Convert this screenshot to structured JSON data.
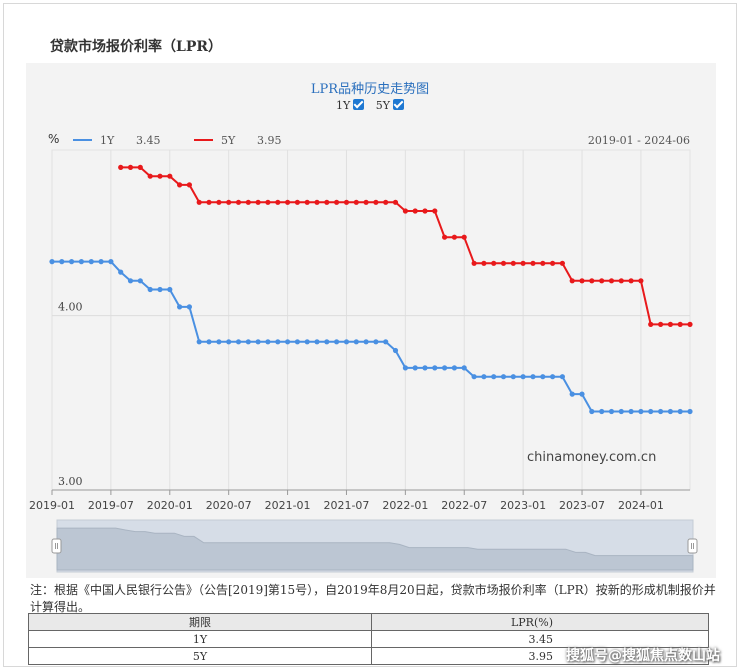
{
  "page": {
    "title": "贷款市场报价利率（LPR）"
  },
  "chart": {
    "heading": "LPR品种历史走势图",
    "toggles": [
      {
        "label": "1Y",
        "checked": true
      },
      {
        "label": "5Y",
        "checked": true
      }
    ],
    "unit_label": "%",
    "legend": [
      {
        "name": "1Y",
        "value": "3.45",
        "color": "#4a90e2"
      },
      {
        "name": "5Y",
        "value": "3.95",
        "color": "#e8191b"
      }
    ],
    "date_range": "2019-01 - 2024-06",
    "watermark": "chinamoney.com.cn"
  },
  "chart_data": {
    "type": "line",
    "x_ticks": [
      "2019-01",
      "2019-07",
      "2020-01",
      "2020-07",
      "2021-01",
      "2021-07",
      "2022-01",
      "2022-07",
      "2023-01",
      "2023-07",
      "2024-01"
    ],
    "y_ticks": [
      "3.00",
      "4.00"
    ],
    "ylim": [
      3.0,
      4.95
    ],
    "xlim": [
      "2019-01",
      "2024-06"
    ],
    "grid": true,
    "series": [
      {
        "name": "1Y",
        "color": "#4a90e2",
        "points": [
          [
            "2019-01",
            4.31
          ],
          [
            "2019-02",
            4.31
          ],
          [
            "2019-03",
            4.31
          ],
          [
            "2019-04",
            4.31
          ],
          [
            "2019-05",
            4.31
          ],
          [
            "2019-06",
            4.31
          ],
          [
            "2019-07",
            4.31
          ],
          [
            "2019-08",
            4.25
          ],
          [
            "2019-09",
            4.2
          ],
          [
            "2019-10",
            4.2
          ],
          [
            "2019-11",
            4.15
          ],
          [
            "2019-12",
            4.15
          ],
          [
            "2020-01",
            4.15
          ],
          [
            "2020-02",
            4.05
          ],
          [
            "2020-03",
            4.05
          ],
          [
            "2020-04",
            3.85
          ],
          [
            "2020-05",
            3.85
          ],
          [
            "2020-06",
            3.85
          ],
          [
            "2020-07",
            3.85
          ],
          [
            "2020-08",
            3.85
          ],
          [
            "2020-09",
            3.85
          ],
          [
            "2020-10",
            3.85
          ],
          [
            "2020-11",
            3.85
          ],
          [
            "2020-12",
            3.85
          ],
          [
            "2021-01",
            3.85
          ],
          [
            "2021-02",
            3.85
          ],
          [
            "2021-03",
            3.85
          ],
          [
            "2021-04",
            3.85
          ],
          [
            "2021-05",
            3.85
          ],
          [
            "2021-06",
            3.85
          ],
          [
            "2021-07",
            3.85
          ],
          [
            "2021-08",
            3.85
          ],
          [
            "2021-09",
            3.85
          ],
          [
            "2021-10",
            3.85
          ],
          [
            "2021-11",
            3.85
          ],
          [
            "2021-12",
            3.8
          ],
          [
            "2022-01",
            3.7
          ],
          [
            "2022-02",
            3.7
          ],
          [
            "2022-03",
            3.7
          ],
          [
            "2022-04",
            3.7
          ],
          [
            "2022-05",
            3.7
          ],
          [
            "2022-06",
            3.7
          ],
          [
            "2022-07",
            3.7
          ],
          [
            "2022-08",
            3.65
          ],
          [
            "2022-09",
            3.65
          ],
          [
            "2022-10",
            3.65
          ],
          [
            "2022-11",
            3.65
          ],
          [
            "2022-12",
            3.65
          ],
          [
            "2023-01",
            3.65
          ],
          [
            "2023-02",
            3.65
          ],
          [
            "2023-03",
            3.65
          ],
          [
            "2023-04",
            3.65
          ],
          [
            "2023-05",
            3.65
          ],
          [
            "2023-06",
            3.55
          ],
          [
            "2023-07",
            3.55
          ],
          [
            "2023-08",
            3.45
          ],
          [
            "2023-09",
            3.45
          ],
          [
            "2023-10",
            3.45
          ],
          [
            "2023-11",
            3.45
          ],
          [
            "2023-12",
            3.45
          ],
          [
            "2024-01",
            3.45
          ],
          [
            "2024-02",
            3.45
          ],
          [
            "2024-03",
            3.45
          ],
          [
            "2024-04",
            3.45
          ],
          [
            "2024-05",
            3.45
          ],
          [
            "2024-06",
            3.45
          ]
        ]
      },
      {
        "name": "5Y",
        "color": "#e8191b",
        "points": [
          [
            "2019-08",
            4.85
          ],
          [
            "2019-09",
            4.85
          ],
          [
            "2019-10",
            4.85
          ],
          [
            "2019-11",
            4.8
          ],
          [
            "2019-12",
            4.8
          ],
          [
            "2020-01",
            4.8
          ],
          [
            "2020-02",
            4.75
          ],
          [
            "2020-03",
            4.75
          ],
          [
            "2020-04",
            4.65
          ],
          [
            "2020-05",
            4.65
          ],
          [
            "2020-06",
            4.65
          ],
          [
            "2020-07",
            4.65
          ],
          [
            "2020-08",
            4.65
          ],
          [
            "2020-09",
            4.65
          ],
          [
            "2020-10",
            4.65
          ],
          [
            "2020-11",
            4.65
          ],
          [
            "2020-12",
            4.65
          ],
          [
            "2021-01",
            4.65
          ],
          [
            "2021-02",
            4.65
          ],
          [
            "2021-03",
            4.65
          ],
          [
            "2021-04",
            4.65
          ],
          [
            "2021-05",
            4.65
          ],
          [
            "2021-06",
            4.65
          ],
          [
            "2021-07",
            4.65
          ],
          [
            "2021-08",
            4.65
          ],
          [
            "2021-09",
            4.65
          ],
          [
            "2021-10",
            4.65
          ],
          [
            "2021-11",
            4.65
          ],
          [
            "2021-12",
            4.65
          ],
          [
            "2022-01",
            4.6
          ],
          [
            "2022-02",
            4.6
          ],
          [
            "2022-03",
            4.6
          ],
          [
            "2022-04",
            4.6
          ],
          [
            "2022-05",
            4.45
          ],
          [
            "2022-06",
            4.45
          ],
          [
            "2022-07",
            4.45
          ],
          [
            "2022-08",
            4.3
          ],
          [
            "2022-09",
            4.3
          ],
          [
            "2022-10",
            4.3
          ],
          [
            "2022-11",
            4.3
          ],
          [
            "2022-12",
            4.3
          ],
          [
            "2023-01",
            4.3
          ],
          [
            "2023-02",
            4.3
          ],
          [
            "2023-03",
            4.3
          ],
          [
            "2023-04",
            4.3
          ],
          [
            "2023-05",
            4.3
          ],
          [
            "2023-06",
            4.2
          ],
          [
            "2023-07",
            4.2
          ],
          [
            "2023-08",
            4.2
          ],
          [
            "2023-09",
            4.2
          ],
          [
            "2023-10",
            4.2
          ],
          [
            "2023-11",
            4.2
          ],
          [
            "2023-12",
            4.2
          ],
          [
            "2024-01",
            4.2
          ],
          [
            "2024-02",
            3.95
          ],
          [
            "2024-03",
            3.95
          ],
          [
            "2024-04",
            3.95
          ],
          [
            "2024-05",
            3.95
          ],
          [
            "2024-06",
            3.95
          ]
        ]
      }
    ]
  },
  "notes": {
    "text": "注：根据《中国人民银行公告》（公告[2019]第15号），自2019年8月20日起，贷款市场报价利率（LPR）按新的形成机制报价并计算得出。"
  },
  "table": {
    "headers": [
      "期限",
      "LPR(%)"
    ],
    "rows": [
      [
        "1Y",
        "3.45"
      ],
      [
        "5Y",
        "3.95"
      ]
    ]
  },
  "overlay_watermark": "搜狐号@搜狐焦点数山站"
}
